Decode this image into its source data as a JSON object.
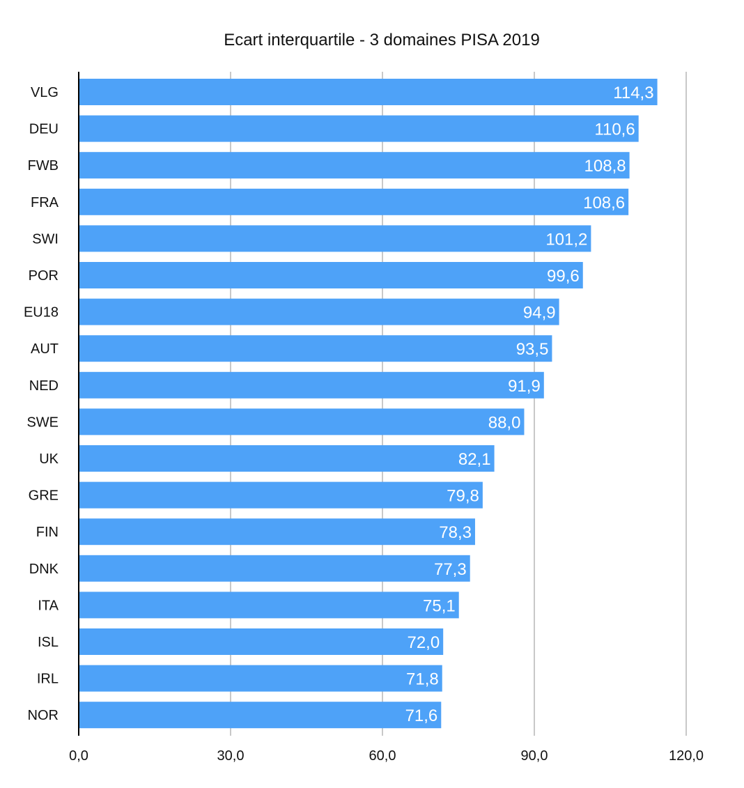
{
  "chart_data": {
    "type": "bar",
    "orientation": "horizontal",
    "title": "Ecart interquartile - 3 domaines PISA 2019",
    "xlabel": "",
    "ylabel": "",
    "categories": [
      "VLG",
      "DEU",
      "FWB",
      "FRA",
      "SWI",
      "POR",
      "EU18",
      "AUT",
      "NED",
      "SWE",
      "UK",
      "GRE",
      "FIN",
      "DNK",
      "ITA",
      "ISL",
      "IRL",
      "NOR"
    ],
    "values": [
      114.3,
      110.6,
      108.8,
      108.6,
      101.2,
      99.6,
      94.9,
      93.5,
      91.9,
      88.0,
      82.1,
      79.8,
      78.3,
      77.3,
      75.1,
      72.0,
      71.8,
      71.6
    ],
    "value_labels": [
      "114,3",
      "110,6",
      "108,8",
      "108,6",
      "101,2",
      "99,6",
      "94,9",
      "93,5",
      "91,9",
      "88,0",
      "82,1",
      "79,8",
      "78,3",
      "77,3",
      "75,1",
      "72,0",
      "71,8",
      "71,6"
    ],
    "xlim": [
      0,
      120
    ],
    "x_ticks": [
      0,
      30,
      60,
      90,
      120
    ],
    "x_tick_labels": [
      "0,0",
      "30,0",
      "60,0",
      "90,0",
      "120,0"
    ],
    "grid": true,
    "legend": "none",
    "colors": {
      "bar": "#4ea2f8",
      "grid": "#c8c8c8",
      "axis": "#000000",
      "label_inside": "#ffffff"
    }
  }
}
